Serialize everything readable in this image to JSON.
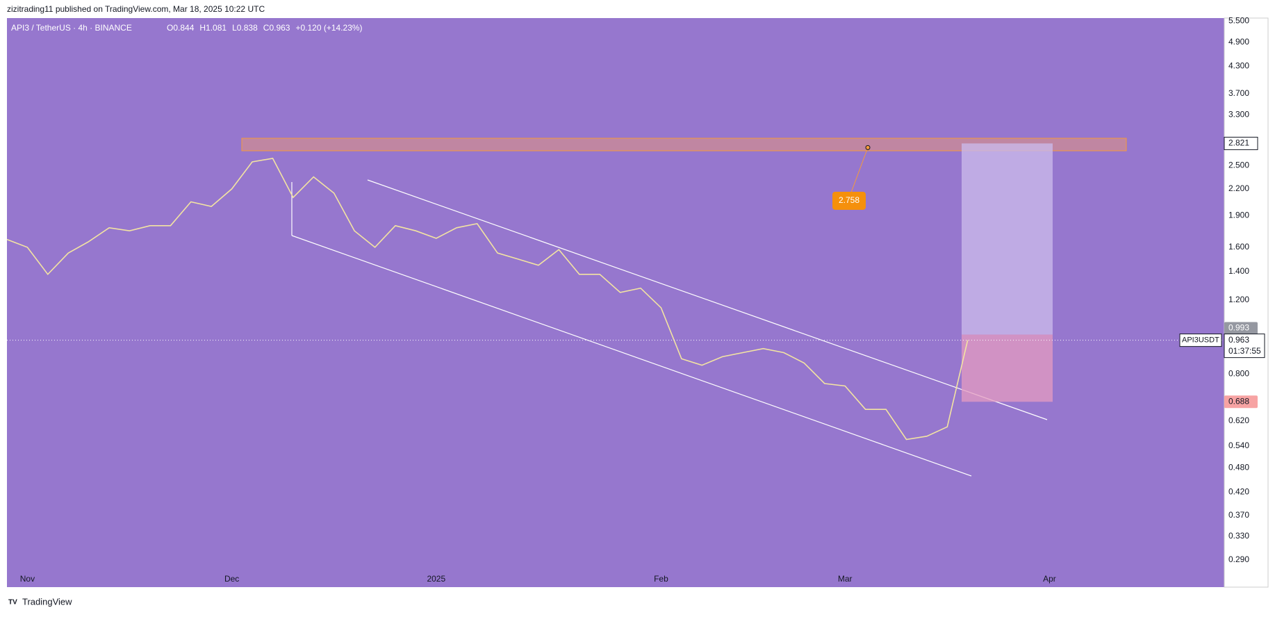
{
  "header": {
    "publisher": "zizitrading11 published on TradingView.com, Mar 18, 2025 10:22 UTC"
  },
  "chart_data": {
    "type": "line",
    "title": "API3 / TetherUS · 4h · BINANCE",
    "quote": [
      "O0.844",
      "H1.081",
      "L0.838",
      "C0.963",
      "+0.120 (+14.23%)"
    ],
    "categories": [
      null,
      "Nov",
      null,
      null,
      null,
      null,
      null,
      null,
      null,
      null,
      null,
      "Dec",
      null,
      null,
      null,
      null,
      null,
      null,
      null,
      null,
      null,
      "2025",
      null,
      null,
      null,
      null,
      null,
      null,
      null,
      null,
      null,
      null,
      "Feb",
      null,
      null,
      null,
      null,
      null,
      null,
      null,
      null,
      "Mar",
      null,
      null,
      null,
      null,
      null,
      null,
      null,
      null,
      null,
      "Apr",
      null,
      null,
      null,
      null,
      null,
      null,
      null,
      null
    ],
    "series": [
      {
        "name": "API3USDT",
        "color": "#f3e4a2",
        "values": [
          1.67,
          1.6,
          1.38,
          1.55,
          1.65,
          1.78,
          1.75,
          1.8,
          1.8,
          2.05,
          2.0,
          2.2,
          2.55,
          2.6,
          2.1,
          2.35,
          2.15,
          1.75,
          1.6,
          1.8,
          1.75,
          1.68,
          1.78,
          1.82,
          1.55,
          1.5,
          1.45,
          1.58,
          1.38,
          1.38,
          1.25,
          1.28,
          1.15,
          0.87,
          0.84,
          0.88,
          0.9,
          0.92,
          0.9,
          0.85,
          0.76,
          0.75,
          0.66,
          0.66,
          0.56,
          0.57,
          0.6,
          0.963,
          null,
          null,
          null,
          null,
          null,
          null,
          null,
          null,
          null,
          null,
          null,
          null
        ]
      }
    ],
    "log_scale": true,
    "grid": false,
    "ylim": [
      0.25,
      5.65
    ],
    "yticks": [
      {
        "value": 5.5,
        "label": "5.500"
      },
      {
        "value": 4.9,
        "label": "4.900"
      },
      {
        "value": 4.3,
        "label": "4.300"
      },
      {
        "value": 3.7,
        "label": "3.700"
      },
      {
        "value": 3.3,
        "label": "3.300"
      },
      {
        "value": 2.5,
        "label": "2.500"
      },
      {
        "value": 2.2,
        "label": "2.200"
      },
      {
        "value": 1.9,
        "label": "1.900"
      },
      {
        "value": 1.6,
        "label": "1.600"
      },
      {
        "value": 1.4,
        "label": "1.400"
      },
      {
        "value": 1.2,
        "label": "1.200"
      },
      {
        "value": 0.8,
        "label": "0.800"
      },
      {
        "value": 0.62,
        "label": "0.620"
      },
      {
        "value": 0.54,
        "label": "0.540"
      },
      {
        "value": 0.48,
        "label": "0.480"
      },
      {
        "value": 0.42,
        "label": "0.420"
      },
      {
        "value": 0.37,
        "label": "0.370"
      },
      {
        "value": 0.33,
        "label": "0.330"
      },
      {
        "value": 0.29,
        "label": "0.290"
      }
    ],
    "last_price": {
      "value": 0.963,
      "label": "0.963"
    },
    "countdown": "01:37:55",
    "position": {
      "target": {
        "value": 2.821,
        "label": "2.821"
      },
      "entry": {
        "value": 0.993,
        "label": "0.993"
      },
      "stop": {
        "value": 0.688,
        "label": "0.688"
      }
    },
    "callout": {
      "value": 2.758,
      "label": "2.758"
    }
  },
  "footer": {
    "brand": "TradingView"
  }
}
